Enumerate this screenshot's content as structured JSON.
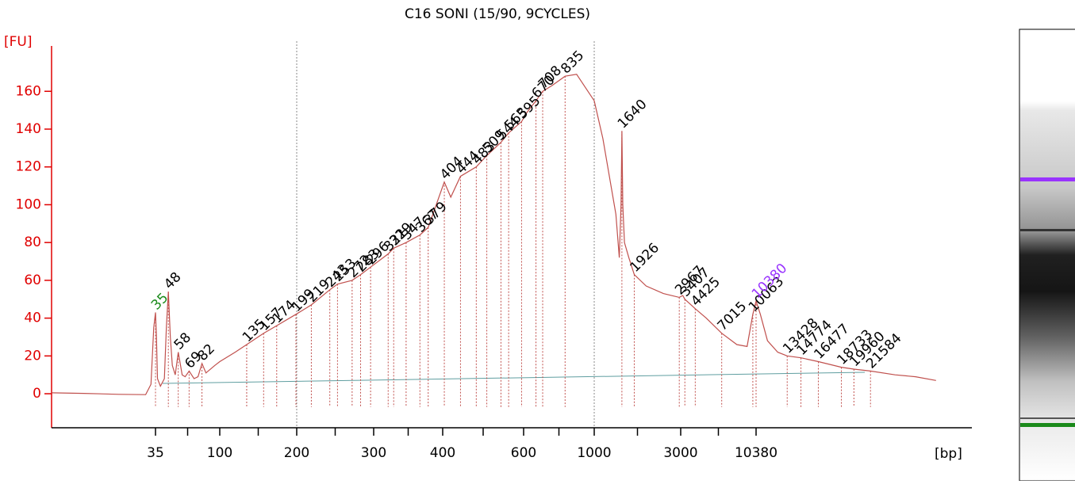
{
  "chart_data": {
    "type": "line",
    "title": "C16 SONI (15/90, 9CYCLES)",
    "ylabel": "[FU]",
    "xlabel": "[bp]",
    "ylim": [
      -18,
      184
    ],
    "yticks": [
      0,
      20,
      40,
      60,
      80,
      100,
      120,
      140,
      160
    ],
    "xlim": [
      1,
      28000
    ],
    "xticks": [
      35,
      100,
      200,
      300,
      400,
      600,
      1000,
      3000,
      10380
    ],
    "vlines": [
      200,
      1000
    ],
    "x": [
      1,
      3,
      10,
      25,
      30,
      33,
      35,
      36,
      37,
      40,
      44,
      46,
      48,
      50,
      52,
      55,
      58,
      62,
      65,
      69,
      74,
      78,
      82,
      86,
      95,
      100,
      120,
      135,
      157,
      174,
      199,
      219,
      243,
      253,
      272,
      283,
      296,
      321,
      329,
      347,
      367,
      379,
      404,
      420,
      444,
      483,
      509,
      544,
      563,
      595,
      620,
      670,
      708,
      760,
      835,
      900,
      1000,
      1200,
      1500,
      1580,
      1620,
      1640,
      1660,
      1700,
      1800,
      1926,
      2200,
      2600,
      2967,
      3200,
      3407,
      4425,
      5500,
      7015,
      8500,
      9500,
      10063,
      10380,
      10800,
      11500,
      12500,
      13428,
      14774,
      16477,
      18733,
      19960,
      21584,
      24000,
      26000,
      28000
    ],
    "series": [
      {
        "color": "#c0504d",
        "values": [
          0.5,
          0.2,
          -0.3,
          -0.5,
          5,
          35,
          43,
          30,
          8,
          4,
          8,
          35,
          54,
          30,
          15,
          10,
          22,
          10,
          9,
          12,
          8,
          9,
          16,
          11,
          15,
          17,
          22,
          26,
          32,
          36,
          42,
          47,
          55,
          58,
          60,
          63,
          67,
          74,
          77,
          80,
          84,
          88,
          112,
          104,
          115,
          120,
          126,
          133,
          138,
          144,
          149,
          155,
          160,
          163,
          168,
          169,
          155,
          135,
          95,
          72,
          100,
          139,
          100,
          80,
          72,
          63,
          57,
          53,
          51,
          52,
          50,
          45,
          40,
          32,
          26,
          25,
          42,
          49,
          42,
          28,
          22,
          20,
          19,
          17,
          14,
          13,
          12,
          10,
          9,
          7
        ]
      }
    ],
    "peak_label_color": "#000000",
    "peaks": [
      {
        "size": 35,
        "fu": 43,
        "color": "#1a8a1a"
      },
      {
        "size": 48,
        "fu": 54
      },
      {
        "size": 58,
        "fu": 22
      },
      {
        "size": 69,
        "fu": 12
      },
      {
        "size": 82,
        "fu": 16
      },
      {
        "size": 135,
        "fu": 26
      },
      {
        "size": 157,
        "fu": 32
      },
      {
        "size": 174,
        "fu": 36
      },
      {
        "size": 199,
        "fu": 42
      },
      {
        "size": 219,
        "fu": 47
      },
      {
        "size": 243,
        "fu": 55
      },
      {
        "size": 253,
        "fu": 58
      },
      {
        "size": 272,
        "fu": 60
      },
      {
        "size": 283,
        "fu": 63
      },
      {
        "size": 296,
        "fu": 67
      },
      {
        "size": 321,
        "fu": 74
      },
      {
        "size": 329,
        "fu": 77
      },
      {
        "size": 347,
        "fu": 80
      },
      {
        "size": 367,
        "fu": 84
      },
      {
        "size": 379,
        "fu": 88
      },
      {
        "size": 404,
        "fu": 112
      },
      {
        "size": 444,
        "fu": 115
      },
      {
        "size": 483,
        "fu": 120
      },
      {
        "size": 509,
        "fu": 126
      },
      {
        "size": 544,
        "fu": 133
      },
      {
        "size": 563,
        "fu": 138
      },
      {
        "size": 595,
        "fu": 144
      },
      {
        "size": 670,
        "fu": 155
      },
      {
        "size": 708,
        "fu": 160
      },
      {
        "size": 835,
        "fu": 168
      },
      {
        "size": 1640,
        "fu": 139
      },
      {
        "size": 1926,
        "fu": 63
      },
      {
        "size": 2967,
        "fu": 51
      },
      {
        "size": 3407,
        "fu": 50
      },
      {
        "size": 4425,
        "fu": 45
      },
      {
        "size": 7015,
        "fu": 32
      },
      {
        "size": 10063,
        "fu": 42
      },
      {
        "size": 10380,
        "fu": 49,
        "color": "#9933ff"
      },
      {
        "size": 13428,
        "fu": 20
      },
      {
        "size": 14774,
        "fu": 19
      },
      {
        "size": 16477,
        "fu": 17
      },
      {
        "size": 18733,
        "fu": 14
      },
      {
        "size": 19960,
        "fu": 13
      },
      {
        "size": 21584,
        "fu": 12
      }
    ]
  }
}
